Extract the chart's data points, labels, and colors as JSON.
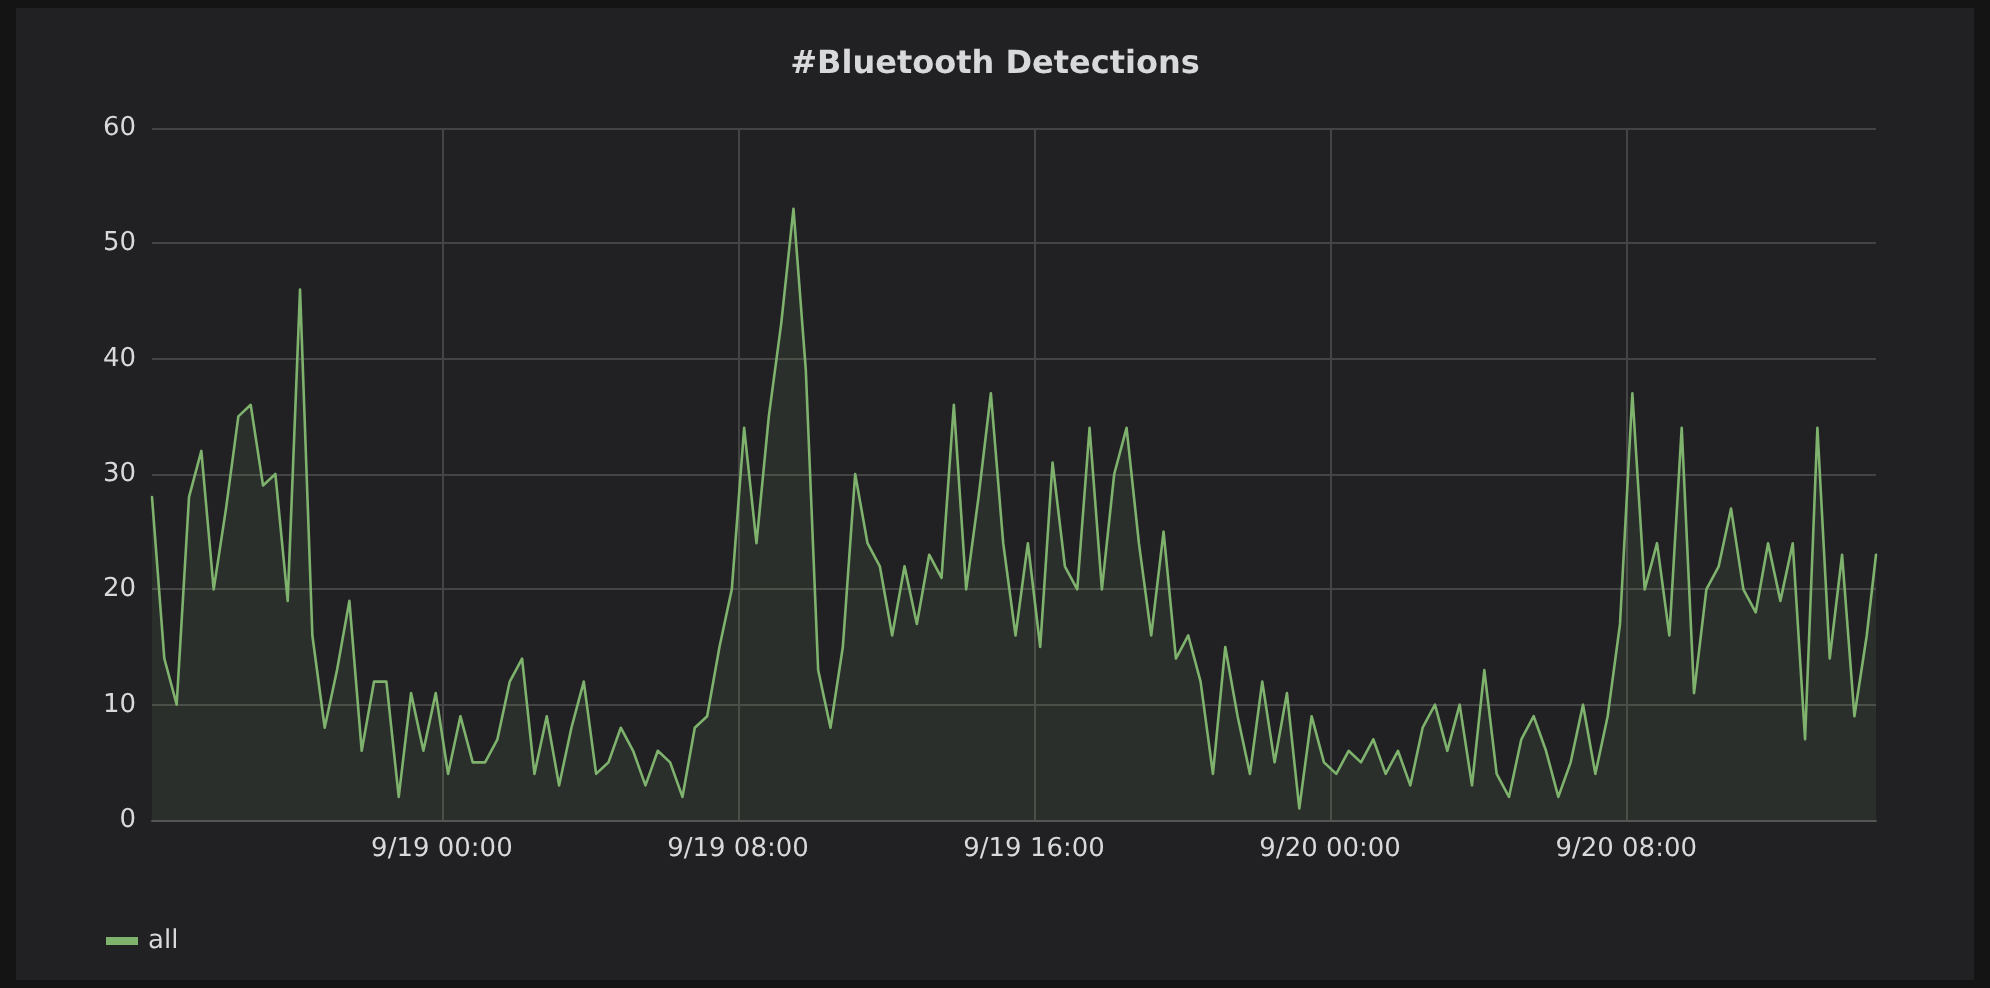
{
  "chart_data": {
    "type": "area",
    "title": "#Bluetooth Detections",
    "x": [
      "--09-18T16:10",
      "--09-18T16:30",
      "--09-18T16:50",
      "--09-18T17:10",
      "--09-18T17:30",
      "--09-18T17:50",
      "--09-18T18:10",
      "--09-18T18:30",
      "--09-18T18:50",
      "--09-18T19:10",
      "--09-18T19:30",
      "--09-18T19:50",
      "--09-18T20:10",
      "--09-18T20:30",
      "--09-18T20:50",
      "--09-18T21:10",
      "--09-18T21:30",
      "--09-18T21:50",
      "--09-18T22:10",
      "--09-18T22:30",
      "--09-18T22:50",
      "--09-18T23:10",
      "--09-18T23:30",
      "--09-18T23:50",
      "--09-19T00:10",
      "--09-19T00:30",
      "--09-19T00:50",
      "--09-19T01:10",
      "--09-19T01:30",
      "--09-19T01:50",
      "--09-19T02:10",
      "--09-19T02:30",
      "--09-19T02:50",
      "--09-19T03:10",
      "--09-19T03:30",
      "--09-19T03:50",
      "--09-19T04:10",
      "--09-19T04:30",
      "--09-19T04:50",
      "--09-19T05:10",
      "--09-19T05:30",
      "--09-19T05:50",
      "--09-19T06:10",
      "--09-19T06:30",
      "--09-19T06:50",
      "--09-19T07:10",
      "--09-19T07:30",
      "--09-19T07:50",
      "--09-19T08:10",
      "--09-19T08:30",
      "--09-19T08:50",
      "--09-19T09:10",
      "--09-19T09:30",
      "--09-19T09:50",
      "--09-19T10:10",
      "--09-19T10:30",
      "--09-19T10:50",
      "--09-19T11:10",
      "--09-19T11:30",
      "--09-19T11:50",
      "--09-19T12:10",
      "--09-19T12:30",
      "--09-19T12:50",
      "--09-19T13:10",
      "--09-19T13:30",
      "--09-19T13:50",
      "--09-19T14:10",
      "--09-19T14:30",
      "--09-19T14:50",
      "--09-19T15:10",
      "--09-19T15:30",
      "--09-19T15:50",
      "--09-19T16:10",
      "--09-19T16:30",
      "--09-19T16:50",
      "--09-19T17:10",
      "--09-19T17:30",
      "--09-19T17:50",
      "--09-19T18:10",
      "--09-19T18:30",
      "--09-19T18:50",
      "--09-19T19:10",
      "--09-19T19:30",
      "--09-19T19:50",
      "--09-19T20:10",
      "--09-19T20:30",
      "--09-19T20:50",
      "--09-19T21:10",
      "--09-19T21:30",
      "--09-19T21:50",
      "--09-19T22:10",
      "--09-19T22:30",
      "--09-19T22:50",
      "--09-19T23:10",
      "--09-19T23:30",
      "--09-19T23:50",
      "--09-20T00:10",
      "--09-20T00:30",
      "--09-20T00:50",
      "--09-20T01:10",
      "--09-20T01:30",
      "--09-20T01:50",
      "--09-20T02:10",
      "--09-20T02:30",
      "--09-20T02:50",
      "--09-20T03:10",
      "--09-20T03:30",
      "--09-20T03:50",
      "--09-20T04:10",
      "--09-20T04:30",
      "--09-20T04:50",
      "--09-20T05:10",
      "--09-20T05:30",
      "--09-20T05:50",
      "--09-20T06:10",
      "--09-20T06:30",
      "--09-20T06:50",
      "--09-20T07:10",
      "--09-20T07:30",
      "--09-20T07:50",
      "--09-20T08:10",
      "--09-20T08:30",
      "--09-20T08:50",
      "--09-20T09:10",
      "--09-20T09:30",
      "--09-20T09:50",
      "--09-20T10:10",
      "--09-20T10:30",
      "--09-20T10:50",
      "--09-20T11:10",
      "--09-20T11:30",
      "--09-20T11:50",
      "--09-20T12:10",
      "--09-20T12:30",
      "--09-20T12:50",
      "--09-20T13:10",
      "--09-20T13:30",
      "--09-20T13:50",
      "--09-20T14:10",
      "--09-20T14:30",
      "--09-20T14:45"
    ],
    "series": [
      {
        "name": "all",
        "color": "#7eb26d",
        "values": [
          28,
          14,
          10,
          28,
          32,
          20,
          27,
          35,
          36,
          29,
          30,
          19,
          46,
          16,
          8,
          13,
          19,
          6,
          12,
          12,
          2,
          11,
          6,
          11,
          4,
          9,
          5,
          5,
          7,
          12,
          14,
          4,
          9,
          3,
          8,
          12,
          4,
          5,
          8,
          6,
          3,
          6,
          5,
          2,
          8,
          9,
          15,
          20,
          34,
          24,
          35,
          43,
          53,
          39,
          13,
          8,
          15,
          30,
          24,
          22,
          16,
          22,
          17,
          23,
          21,
          36,
          20,
          28,
          37,
          24,
          16,
          24,
          15,
          31,
          22,
          20,
          34,
          20,
          30,
          34,
          24,
          16,
          25,
          14,
          16,
          12,
          4,
          15,
          9,
          4,
          12,
          5,
          11,
          1,
          9,
          5,
          4,
          6,
          5,
          7,
          4,
          6,
          3,
          8,
          10,
          6,
          10,
          3,
          13,
          4,
          2,
          7,
          9,
          6,
          2,
          5,
          10,
          4,
          9,
          17,
          37,
          20,
          24,
          16,
          34,
          11,
          20,
          22,
          27,
          20,
          18,
          24,
          19,
          24,
          7,
          34,
          14,
          23,
          9,
          16,
          23
        ]
      }
    ],
    "xlim": [
      "--09-18T16:10",
      "--09-20T14:45"
    ],
    "xticks": [
      {
        "value": "--09-19T00:00",
        "label": "9/19 00:00"
      },
      {
        "value": "--09-19T08:00",
        "label": "9/19 08:00"
      },
      {
        "value": "--09-19T16:00",
        "label": "9/19 16:00"
      },
      {
        "value": "--09-20T00:00",
        "label": "9/20 00:00"
      },
      {
        "value": "--09-20T08:00",
        "label": "9/20 08:00"
      }
    ],
    "ylim": [
      0,
      60
    ],
    "yticks": [
      0,
      10,
      20,
      30,
      40,
      50,
      60
    ],
    "grid": true,
    "legend": "bottom left",
    "marker": "none",
    "line_style": "solid"
  }
}
